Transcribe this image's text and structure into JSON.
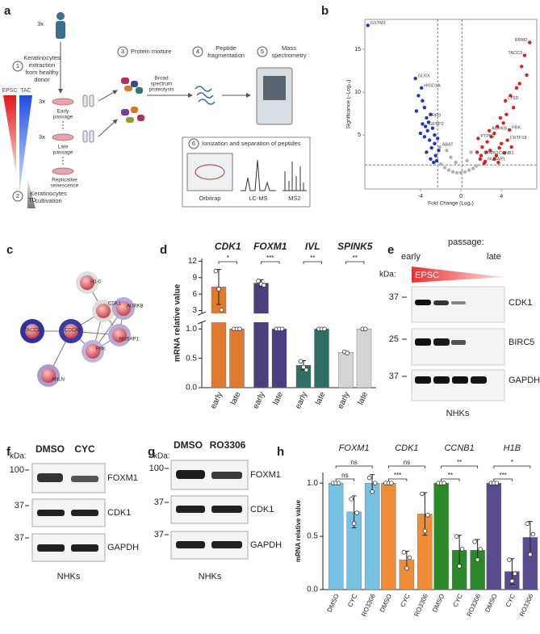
{
  "panel_labels": [
    "a",
    "b",
    "c",
    "d",
    "e",
    "f",
    "g",
    "h"
  ],
  "workflow": {
    "donors": "3x",
    "step1": "1",
    "extraction": [
      "Keratinocytes",
      "extraction",
      "from healthy",
      "donor"
    ],
    "epsc": "EPSC",
    "tac": "TAC",
    "td": "TD",
    "early_n": "3x",
    "early": [
      "Early",
      "passage"
    ],
    "late_n": "3x",
    "late": [
      "Late",
      "passage"
    ],
    "senescence": [
      "Replicative",
      "senescence"
    ],
    "step2": "2",
    "cultivation": [
      "Keratinocytes",
      "cultivation"
    ],
    "step3": "3",
    "protein": "Protein mixture",
    "proteolysis": [
      "Broad",
      "spectrum",
      "proteolysis"
    ],
    "step4": "4",
    "fragmentation": [
      "Peptide",
      "fragmentation"
    ],
    "step5": "5",
    "ms": [
      "Mass",
      "spectrometry"
    ],
    "step6": "6",
    "ionization": "Ionization and separation of peptides",
    "orbitrap": "Orbitrap",
    "lcms": "LC-MS",
    "ms2": "MS2"
  },
  "network": {
    "nodes": [
      "H1-0",
      "CDK1",
      "AURKB",
      "TACC3",
      "CDCA3",
      "NUSAP1",
      "PBK",
      "ANLN"
    ]
  },
  "blot_e": {
    "header": "passage:",
    "early": "early",
    "late": "late",
    "kda": "kDa:",
    "gradient": "EPSC",
    "markers": [
      "37",
      "25",
      "37"
    ],
    "proteins": [
      "CDK1",
      "BIRC5",
      "GAPDH"
    ],
    "cells": "NHKs"
  },
  "blot_f": {
    "kda": "kDa:",
    "lanes": [
      "DMSO",
      "CYC"
    ],
    "markers": [
      "100",
      "37",
      "37"
    ],
    "proteins": [
      "FOXM1",
      "CDK1",
      "GAPDH"
    ],
    "cells": "NHKs"
  },
  "blot_g": {
    "kda": "kDa:",
    "lanes": [
      "DMSO",
      "RO3306"
    ],
    "markers": [
      "100",
      "37",
      "37"
    ],
    "proteins": [
      "FOXM1",
      "CDK1",
      "GAPDH"
    ],
    "cells": "NHKs"
  },
  "chart_data": [
    {
      "type": "scatter",
      "xlabel": "Fold Change (Log₂)",
      "ylabel": "Significance (−Log₁₀)",
      "xlim": [
        -9.5,
        7.5
      ],
      "ylim": [
        -1.3,
        18.5
      ],
      "xticks": [
        -4,
        0,
        4
      ],
      "yticks": [
        5,
        10,
        15
      ],
      "thresholds": {
        "x": [
          -2.3,
          0.1
        ],
        "y": 1.5
      },
      "series": [
        {
          "color": "#b0b0b0",
          "x": [
            -2.0,
            -1.6,
            -1.2,
            -0.8,
            -0.4,
            0,
            0.4,
            0.8,
            1.2,
            1.5,
            -1.0,
            -0.5,
            0.6,
            1.0,
            -1.4,
            -2.1
          ],
          "values": [
            1.6,
            1.2,
            0.9,
            0.7,
            0.6,
            0.6,
            0.7,
            0.9,
            1.1,
            1.4,
            2.4,
            1.8,
            2.0,
            3.0,
            3.2,
            3.6
          ],
          "labels": [
            null,
            null,
            null,
            null,
            null,
            null,
            null,
            null,
            null,
            null,
            null,
            null,
            null,
            null,
            null,
            "ABAT"
          ]
        },
        {
          "color": "#1f35c8",
          "x": [
            -9.2,
            -4.5,
            -3.9,
            -3.4,
            -3.5,
            -4.2,
            -3.8,
            -3.6,
            -3.0,
            -3.2,
            -2.8,
            -4.0,
            -3.6,
            -3.1,
            -2.6,
            -2.9,
            -3.4,
            -2.5,
            -2.2,
            -3.0,
            -2.4,
            -2.7,
            -3.8,
            -4.4,
            -2.6,
            -2.3,
            -3.3
          ],
          "values": [
            17.8,
            11.6,
            10.5,
            7.0,
            6.0,
            9.6,
            9.0,
            8.2,
            7.4,
            6.5,
            5.8,
            5.2,
            4.8,
            4.4,
            4.0,
            3.5,
            3.0,
            2.6,
            3.2,
            2.2,
            2.0,
            1.8,
            6.3,
            7.8,
            5.0,
            4.6,
            5.5
          ],
          "labels": [
            "GSTM3",
            "GLRX",
            "HIGD1A",
            "PRR9",
            "IGFBP2",
            null,
            null,
            null,
            null,
            null,
            null,
            null,
            null,
            null,
            null,
            null,
            null,
            null,
            null,
            null,
            null,
            null,
            null,
            null,
            null,
            null,
            null
          ]
        },
        {
          "color": "#e02020",
          "x": [
            6.8,
            6.3,
            4.4,
            4.8,
            4.6,
            3.5,
            2.4,
            2.0,
            2.8,
            1.7,
            6.0,
            6.5,
            5.8,
            5.5,
            4.9,
            5.2,
            4.5,
            3.9,
            4.2,
            3.6,
            3.3,
            3.0,
            2.6,
            4.0,
            3.8,
            2.9,
            2.5,
            2.1,
            3.3,
            4.3,
            5.0,
            1.9,
            2.3,
            3.7,
            1.6
          ],
          "values": [
            15.8,
            14.3,
            9.0,
            5.6,
            4.4,
            2.6,
            1.9,
            2.6,
            5.5,
            4.6,
            13.0,
            12.0,
            11.0,
            10.5,
            9.6,
            8.2,
            7.4,
            7.0,
            6.4,
            6.0,
            5.2,
            4.8,
            4.2,
            4.0,
            3.5,
            3.2,
            3.0,
            3.6,
            2.2,
            2.9,
            3.6,
            2.2,
            1.7,
            1.8,
            3.0
          ],
          "labels": [
            "RRM2",
            "TACC3",
            "LY6D",
            "PBK",
            "CHTF18",
            "CCNB1",
            "NUSAP1",
            "STMN1",
            "AURKB",
            "PTPN2",
            null,
            null,
            null,
            null,
            null,
            null,
            null,
            null,
            null,
            null,
            null,
            null,
            null,
            null,
            null,
            null,
            null,
            null,
            null,
            null,
            null,
            null,
            null,
            null,
            null
          ]
        }
      ]
    },
    {
      "type": "grouped_bar",
      "ylabel": "mRNA relative value",
      "ylim": [
        0,
        12.5
      ],
      "ybreak": [
        1.1,
        2.6
      ],
      "yticks": [
        {
          "value": 0,
          "label": "0.0"
        },
        0.5,
        {
          "value": 1,
          "label": "1.0"
        },
        3,
        6,
        9,
        12
      ],
      "categories": [
        "early",
        "late"
      ],
      "groups": [
        {
          "name": "CDK1",
          "color": "#e07a2f",
          "values": [
            7.3,
            1
          ],
          "errors": [
            3.2,
            null
          ],
          "points": [
            [
              10.2,
              6.9,
              3.1
            ],
            [
              1,
              1,
              1
            ]
          ],
          "significance": "*"
        },
        {
          "name": "FOXM1",
          "color": "#4b3f7e",
          "values": [
            8.0,
            1
          ],
          "errors": [
            0.6,
            null
          ],
          "points": [
            [
              8.4,
              7.8,
              7.6
            ],
            [
              1,
              1,
              1
            ]
          ],
          "significance": "***"
        },
        {
          "name": "IVL",
          "color": "#2e6e63",
          "values": [
            0.38,
            1
          ],
          "errors": [
            0.08,
            null
          ],
          "points": [
            [
              0.45,
              0.35,
              0.3
            ],
            [
              1,
              1,
              1
            ]
          ],
          "significance": "**"
        },
        {
          "name": "SPINK5",
          "color": "#d4d4d4",
          "values": [
            0.6,
            1
          ],
          "errors": [
            0.02,
            null
          ],
          "points": [
            [
              0.61,
              0.59
            ],
            [
              1,
              1
            ]
          ],
          "significance": "**"
        }
      ]
    },
    {
      "type": "grouped_bar",
      "ylabel": "mRNA relative value",
      "ylim": [
        0,
        1.1
      ],
      "yticks": [
        {
          "value": 0,
          "label": "0.0"
        },
        0.5,
        {
          "value": 1,
          "label": "1.0"
        }
      ],
      "categories": [
        "DMSO",
        "CYC",
        "RO3306"
      ],
      "groups": [
        {
          "name": "FOXM1",
          "color": "#77c1e2",
          "values": [
            1,
            0.73,
            1.0
          ],
          "errors": [
            null,
            0.15,
            0.08
          ],
          "points": [
            [
              1,
              1,
              1
            ],
            [
              0.85,
              0.62,
              0.72
            ],
            [
              1.05,
              0.92,
              1.0
            ]
          ],
          "significance": [
            "ns",
            "ns"
          ]
        },
        {
          "name": "CDK1",
          "color": "#f08b38",
          "values": [
            1,
            0.28,
            0.71
          ],
          "errors": [
            null,
            0.08,
            0.2
          ],
          "points": [
            [
              1,
              1,
              1
            ],
            [
              0.35,
              0.2,
              0.3
            ],
            [
              0.9,
              0.55,
              0.7
            ]
          ],
          "significance": [
            "***",
            "ns"
          ]
        },
        {
          "name": "CCNB1",
          "color": "#2a8a2a",
          "values": [
            1,
            0.37,
            0.37
          ],
          "errors": [
            null,
            0.14,
            0.1
          ],
          "points": [
            [
              1,
              1,
              1
            ],
            [
              0.5,
              0.22,
              0.38
            ],
            [
              0.45,
              0.28,
              0.38
            ]
          ],
          "significance": [
            "**",
            "**"
          ]
        },
        {
          "name": "H1B",
          "color": "#5a4b8e",
          "values": [
            1,
            0.17,
            0.49
          ],
          "errors": [
            null,
            0.12,
            0.15
          ],
          "points": [
            [
              1,
              1,
              1
            ],
            [
              0.28,
              0.08,
              0.15
            ],
            [
              0.62,
              0.33,
              0.52
            ]
          ],
          "significance": [
            "***",
            "*"
          ]
        }
      ]
    }
  ]
}
